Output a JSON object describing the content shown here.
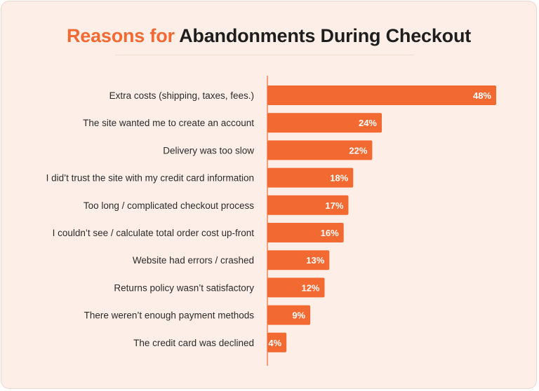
{
  "header": {
    "title_accent": "Reasons for",
    "title_main": "Abandonments During Checkout"
  },
  "colors": {
    "accent": "#f26a32",
    "bar": "#f26a32",
    "background": "#fdefe8"
  },
  "chart_data": {
    "type": "bar",
    "orientation": "horizontal",
    "title": "Reasons for Abandonments During Checkout",
    "categories": [
      "Extra costs (shipping, taxes, fees.)",
      "The site wanted me to create an account",
      "Delivery was too slow",
      "I did’t trust the site with my credit card information",
      "Too long / complicated checkout process",
      "I couldn’t see /  calculate total order cost up-front",
      "Website had errors / crashed",
      "Returns policy wasn’t satisfactory",
      "There weren’t enough payment methods",
      "The credit card was declined"
    ],
    "values": [
      48,
      24,
      22,
      18,
      17,
      16,
      13,
      12,
      9,
      4
    ],
    "value_labels": [
      "48%",
      "24%",
      "22%",
      "18%",
      "17%",
      "16%",
      "13%",
      "12%",
      "9%",
      "4%"
    ],
    "xlim": [
      0,
      48
    ],
    "grid": false,
    "legend": "none"
  }
}
